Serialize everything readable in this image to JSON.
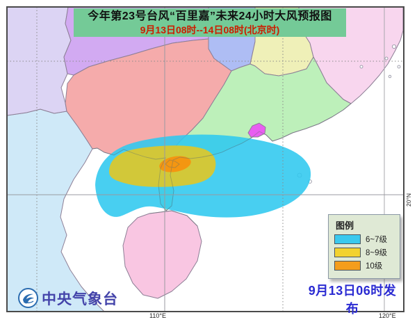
{
  "header": {
    "title": "今年第23号台风“百里嘉”未来24小时大风预报图",
    "subtitle": "9月13日08时--14日08时(北京时)",
    "bg_color": "#74ca97",
    "subtitle_color": "#cc1d00"
  },
  "legend": {
    "title": "图例",
    "bg_color": "#dfe9d5",
    "items": [
      {
        "label": "6~7级",
        "color": "#3ac9ee"
      },
      {
        "label": "8~9级",
        "color": "#f2d22e"
      },
      {
        "label": "10级",
        "color": "#f49d1c"
      }
    ]
  },
  "typhoon": {
    "name": "百里嘉",
    "rings": [
      {
        "name": "wind-6-7",
        "color": "#2fc8ef"
      },
      {
        "name": "wind-8-9",
        "color": "#ddc72b"
      },
      {
        "name": "wind-10",
        "color": "#f5940f"
      }
    ]
  },
  "axis": {
    "lon_labels": [
      {
        "text": "110°E"
      },
      {
        "text": "120°E"
      }
    ],
    "lat_labels": [
      {
        "text": "20°N"
      }
    ]
  },
  "footer": {
    "agency": "中央气象台",
    "agency_color": "#4444aa",
    "issued": "9月13日06时发布",
    "issued_color": "#2a2ad2"
  }
}
